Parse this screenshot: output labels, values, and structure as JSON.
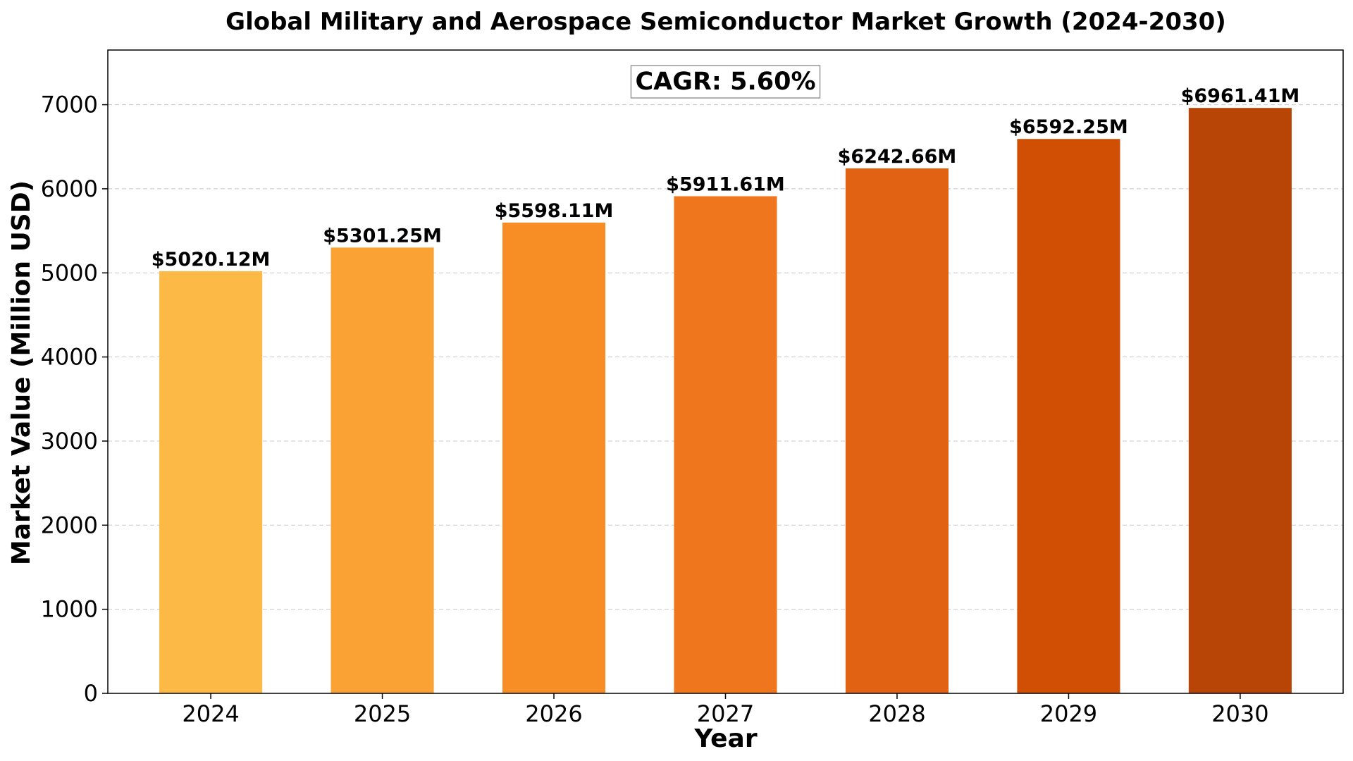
{
  "chart_data": {
    "type": "bar",
    "title": "Global Military and Aerospace Semiconductor Market Growth (2024-2030)",
    "xlabel": "Year",
    "ylabel": "Market Value (Million USD)",
    "categories": [
      "2024",
      "2025",
      "2026",
      "2027",
      "2028",
      "2029",
      "2030"
    ],
    "values": [
      5020.12,
      5301.25,
      5598.11,
      5911.61,
      6242.66,
      6592.25,
      6961.41
    ],
    "data_labels": [
      "$5020.12M",
      "$5301.25M",
      "$5598.11M",
      "$5911.61M",
      "$6242.66M",
      "$6592.25M",
      "$6961.41M"
    ],
    "colors": [
      "#FDB945",
      "#FBA234",
      "#F78E25",
      "#EF761C",
      "#E06212",
      "#D04F05",
      "#B84405"
    ],
    "ylim": [
      0,
      7650
    ],
    "yticks": [
      0,
      1000,
      2000,
      3000,
      4000,
      5000,
      6000,
      7000
    ],
    "ytick_labels": [
      "0",
      "1000",
      "2000",
      "3000",
      "4000",
      "5000",
      "6000",
      "7000"
    ],
    "grid": true,
    "annotation": "CAGR: 5.60%"
  }
}
